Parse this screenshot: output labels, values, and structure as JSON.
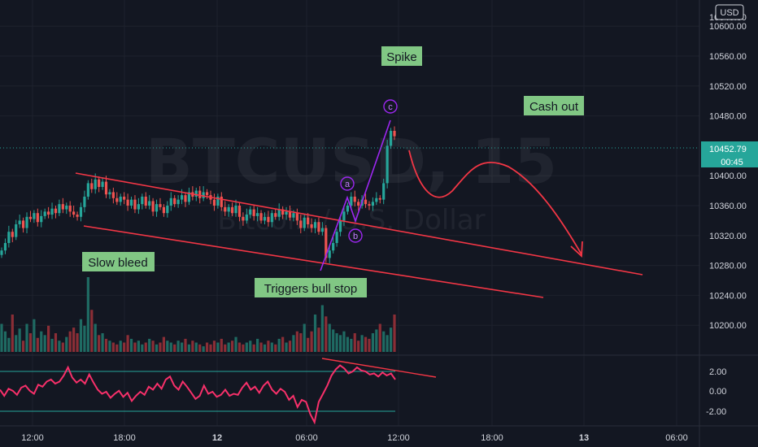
{
  "chart_data": {
    "type": "candlestick",
    "symbol": "BTCUSD, 15",
    "subtitle": "Bitcoin / U.S. Dollar",
    "currency": "USD",
    "last_price": "10452.79",
    "countdown": "00:45",
    "price_axis_ticks": [
      "10600.00",
      "10560.00",
      "10520.00",
      "10480.00",
      "10400.00",
      "10360.00",
      "10320.00",
      "10280.00",
      "10240.00",
      "10200.00"
    ],
    "price_axis_partial": [
      "10640.00",
      "1044"
    ],
    "time_axis_ticks": [
      "12:00",
      "18:00",
      "12",
      "06:00",
      "12:00",
      "18:00",
      "13",
      "06:00"
    ],
    "oscillator_ticks": [
      "2.00",
      "0.00",
      "-2.00"
    ],
    "annotations": {
      "spike": "Spike",
      "cash_out": "Cash out",
      "slow_bleed": "Slow bleed",
      "triggers_bull_stop": "Triggers bull stop",
      "wave_a": "a",
      "wave_b": "b",
      "wave_c": "c"
    },
    "closes": [
      10300,
      10310,
      10325,
      10318,
      10335,
      10340,
      10330,
      10345,
      10342,
      10350,
      10338,
      10346,
      10352,
      10348,
      10356,
      10350,
      10362,
      10355,
      10360,
      10352,
      10348,
      10345,
      10358,
      10372,
      10390,
      10382,
      10395,
      10385,
      10392,
      10375,
      10378,
      10370,
      10365,
      10372,
      10368,
      10360,
      10368,
      10355,
      10362,
      10372,
      10360,
      10366,
      10352,
      10362,
      10358,
      10350,
      10360,
      10370,
      10362,
      10368,
      10374,
      10365,
      10378,
      10372,
      10380,
      10370,
      10378,
      10374,
      10368,
      10360,
      10372,
      10358,
      10352,
      10358,
      10350,
      10360,
      10345,
      10340,
      10348,
      10355,
      10346,
      10350,
      10340,
      10345,
      10338,
      10350,
      10345,
      10355,
      10348,
      10352,
      10344,
      10350,
      10340,
      10330,
      10344,
      10335,
      10330,
      10338,
      10325,
      10330,
      10290,
      10300,
      10310,
      10325,
      10340,
      10352,
      10360,
      10372,
      10365,
      10360,
      10368,
      10362,
      10360,
      10365,
      10370,
      10368,
      10390,
      10440,
      10460,
      10452.79
    ],
    "volumes": [
      30,
      22,
      15,
      40,
      18,
      25,
      12,
      30,
      20,
      35,
      15,
      22,
      18,
      28,
      14,
      20,
      12,
      10,
      16,
      22,
      26,
      20,
      35,
      28,
      80,
      45,
      30,
      18,
      20,
      14,
      12,
      10,
      8,
      12,
      10,
      18,
      14,
      10,
      12,
      8,
      10,
      14,
      12,
      8,
      10,
      16,
      12,
      10,
      8,
      12,
      10,
      14,
      8,
      12,
      10,
      8,
      6,
      10,
      8,
      12,
      10,
      14,
      8,
      10,
      12,
      16,
      10,
      8,
      10,
      12,
      8,
      14,
      10,
      8,
      12,
      10,
      8,
      14,
      16,
      10,
      12,
      18,
      22,
      20,
      30,
      15,
      22,
      40,
      26,
      50,
      38,
      30,
      24,
      20,
      18,
      22,
      16,
      14,
      20,
      12,
      18,
      16,
      14,
      20,
      24,
      30,
      22,
      18,
      26,
      40
    ],
    "oscillator": [
      0.2,
      -0.4,
      0.3,
      0.1,
      -0.3,
      0.4,
      0.6,
      0.1,
      -0.2,
      0.7,
      0.5,
      1.0,
      1.2,
      0.8,
      1.0,
      1.6,
      2.4,
      1.4,
      0.9,
      1.2,
      0.8,
      1.7,
      0.9,
      0.2,
      -0.2,
      0.0,
      -0.6,
      -0.2,
      0.1,
      -0.5,
      -0.1,
      -0.9,
      -0.4,
      0.0,
      -0.3,
      0.5,
      0.2,
      0.8,
      0.3,
      1.2,
      1.5,
      0.6,
      0.2,
      1.0,
      0.5,
      -0.1,
      -0.7,
      -0.4,
      0.6,
      -0.2,
      0.0,
      -0.5,
      -0.3,
      0.2,
      -0.4,
      -0.2,
      -0.3,
      0.4,
      0.9,
      0.2,
      0.5,
      -0.1,
      0.6,
      1.0,
      0.2,
      -0.2,
      0.3,
      0.0,
      -0.8,
      -0.4,
      -1.5,
      -0.8,
      -1.0,
      -2.2,
      -3.0,
      -1.0,
      -0.2,
      0.6,
      1.6,
      2.2,
      2.6,
      2.3,
      1.8,
      2.0,
      2.4,
      2.1,
      2.0,
      1.7,
      1.8,
      1.5,
      1.9,
      1.6,
      1.8,
      1.2
    ],
    "ylim": [
      10180,
      10660
    ],
    "legend": "none",
    "grid": true
  }
}
